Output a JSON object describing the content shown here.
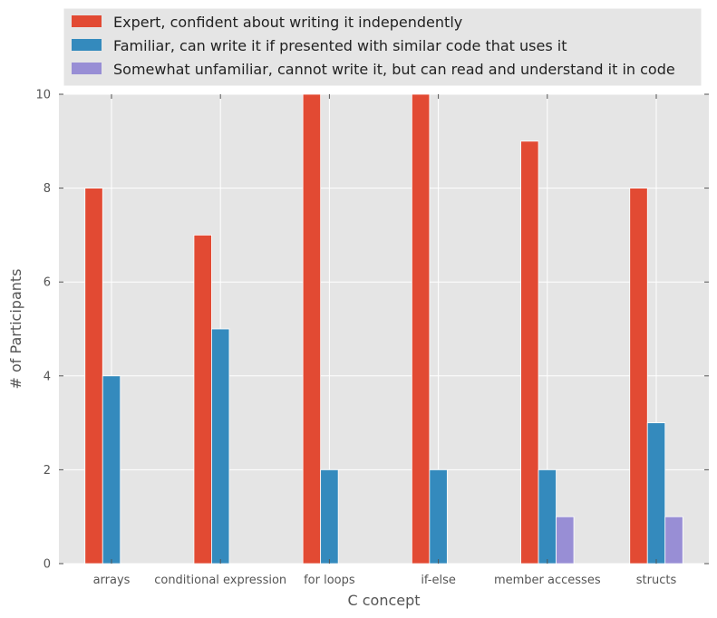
{
  "chart_data": {
    "type": "bar",
    "title": "",
    "xlabel": "C concept",
    "ylabel": "# of Participants",
    "ylim": [
      0,
      10
    ],
    "yticks": [
      0,
      2,
      4,
      6,
      8,
      10
    ],
    "grid": true,
    "legend_position": "top",
    "categories": [
      "arrays",
      "conditional expression",
      "for loops",
      "if-else",
      "member accesses",
      "structs"
    ],
    "series": [
      {
        "name": "Expert, confident about writing it independently",
        "color": "#e24a33",
        "values": [
          8,
          7,
          10,
          10,
          9,
          8
        ]
      },
      {
        "name": "Familiar, can write it if presented with similar code that uses it",
        "color": "#348abd",
        "values": [
          4,
          5,
          2,
          2,
          2,
          3
        ]
      },
      {
        "name": "Somewhat unfamiliar, cannot write it, but can read and understand it in code",
        "color": "#988ed5",
        "values": [
          0,
          0,
          0,
          0,
          1,
          1
        ]
      }
    ]
  }
}
